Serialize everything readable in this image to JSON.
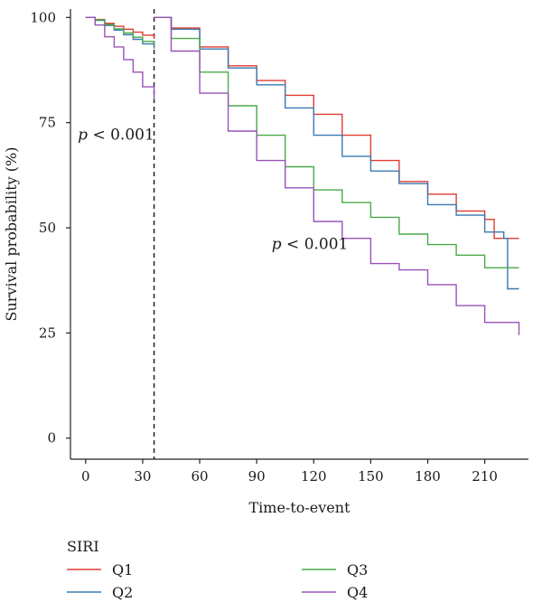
{
  "chart_data": {
    "type": "line",
    "subtype": "kaplan-meier-landmark",
    "xlabel": "Time-to-event",
    "ylabel": "Survival probability (%)",
    "xlim": [
      -8,
      233
    ],
    "ylim": [
      -5,
      102
    ],
    "xticks": [
      0,
      30,
      60,
      90,
      120,
      150,
      180,
      210
    ],
    "yticks": [
      0,
      25,
      50,
      75,
      100
    ],
    "grid": false,
    "landmark_time": 36,
    "annotations": [
      {
        "text_italic": "p",
        "text": " < 0.001",
        "x": 16,
        "y": 71
      },
      {
        "text_italic": "p",
        "text": " < 0.001",
        "x": 118,
        "y": 45
      }
    ],
    "legend": {
      "title": "SIRI",
      "placement": "bottom"
    },
    "series": [
      {
        "name": "Q1",
        "color": "#e03c31",
        "segments": [
          {
            "x": [
              0,
              5,
              10,
              15,
              20,
              25,
              30,
              36
            ],
            "y": [
              100,
              99.5,
              98.6,
              97.9,
              97.2,
              96.5,
              95.8,
              94.9
            ]
          },
          {
            "x": [
              36,
              45,
              60,
              75,
              90,
              105,
              120,
              135,
              150,
              165,
              180,
              195,
              210,
              215,
              228
            ],
            "y": [
              100,
              97.5,
              93,
              88.5,
              85,
              81.5,
              77,
              72,
              66,
              61,
              58,
              54,
              52,
              47.5,
              47.5
            ]
          }
        ]
      },
      {
        "name": "Q2",
        "color": "#3a78b0",
        "segments": [
          {
            "x": [
              0,
              5,
              10,
              15,
              20,
              25,
              30,
              36
            ],
            "y": [
              100,
              99.3,
              98.1,
              97,
              95.9,
              94.8,
              93.7,
              92.6
            ]
          },
          {
            "x": [
              36,
              45,
              60,
              75,
              90,
              105,
              120,
              135,
              150,
              165,
              180,
              195,
              210,
              220,
              222,
              228
            ],
            "y": [
              100,
              97.2,
              92.5,
              88,
              84,
              78.5,
              72,
              67,
              63.5,
              60.5,
              55.5,
              53,
              49,
              47.5,
              35.5,
              35.5
            ]
          }
        ]
      },
      {
        "name": "Q3",
        "color": "#4aaa48",
        "segments": [
          {
            "x": [
              0,
              5,
              10,
              15,
              20,
              25,
              30,
              36
            ],
            "y": [
              100,
              99.4,
              98.3,
              97.3,
              96.3,
              95.3,
              94.3,
              93.3
            ]
          },
          {
            "x": [
              36,
              45,
              60,
              75,
              90,
              105,
              120,
              135,
              150,
              165,
              180,
              195,
              210,
              228
            ],
            "y": [
              100,
              95,
              87,
              79,
              72,
              64.5,
              59,
              56,
              52.5,
              48.5,
              46,
              43.5,
              40.5,
              40.5
            ]
          }
        ]
      },
      {
        "name": "Q4",
        "color": "#9a52b8",
        "segments": [
          {
            "x": [
              0,
              5,
              10,
              15,
              20,
              25,
              30,
              36
            ],
            "y": [
              100,
              98.2,
              95.4,
              93,
              90,
              87,
              83.5,
              80.5
            ]
          },
          {
            "x": [
              36,
              45,
              60,
              75,
              90,
              105,
              120,
              135,
              150,
              165,
              180,
              195,
              210,
              228
            ],
            "y": [
              100,
              92,
              82,
              73,
              66,
              59.5,
              51.5,
              47.5,
              41.5,
              40,
              36.5,
              31.5,
              27.5,
              24.5
            ]
          }
        ]
      }
    ]
  }
}
